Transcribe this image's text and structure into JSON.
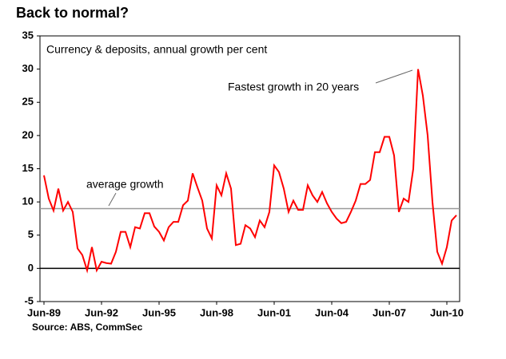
{
  "chart_data": {
    "type": "line",
    "title": "Back to normal?",
    "subtitle": "Currency & deposits, annual growth per cent",
    "source": "Source: ABS, CommSec",
    "categories": [
      "Jun-89",
      null,
      null,
      null,
      null,
      null,
      null,
      null,
      null,
      null,
      null,
      null,
      "Jun-92",
      null,
      null,
      null,
      null,
      null,
      null,
      null,
      null,
      null,
      null,
      null,
      "Jun-95",
      null,
      null,
      null,
      null,
      null,
      null,
      null,
      null,
      null,
      null,
      null,
      "Jun-98",
      null,
      null,
      null,
      null,
      null,
      null,
      null,
      null,
      null,
      null,
      null,
      "Jun-01",
      null,
      null,
      null,
      null,
      null,
      null,
      null,
      null,
      null,
      null,
      null,
      "Jun-04",
      null,
      null,
      null,
      null,
      null,
      null,
      null,
      null,
      null,
      null,
      null,
      "Jun-07",
      null,
      null,
      null,
      null,
      null,
      null,
      null,
      null,
      null,
      null,
      null,
      "Jun-10",
      null,
      null
    ],
    "series": [
      {
        "name": "Currency & deposits growth",
        "color": "#ff0000",
        "values": [
          14,
          10.5,
          8.7,
          12,
          8.7,
          10,
          8.5,
          3,
          2,
          -0.3,
          3.2,
          -0.3,
          1,
          0.8,
          0.7,
          2.5,
          5.5,
          5.5,
          3.2,
          6.2,
          6,
          8.3,
          8.3,
          6.3,
          5.5,
          4.2,
          6.2,
          7,
          7,
          9.5,
          10.2,
          14.3,
          12.2,
          10.2,
          6,
          4.5,
          12.5,
          11,
          14.3,
          12,
          3.5,
          3.7,
          6.5,
          6,
          4.7,
          7.2,
          6.2,
          8.5,
          15.5,
          14.5,
          12,
          8.5,
          10.2,
          8.8,
          8.8,
          12.5,
          11,
          10,
          11.5,
          9.8,
          8.5,
          7.5,
          6.8,
          7,
          8.5,
          10.2,
          12.7,
          12.7,
          13.3,
          17.5,
          17.5,
          19.8,
          19.8,
          17,
          8.5,
          10.5,
          10,
          15,
          30,
          26,
          20,
          10,
          2.5,
          0.7,
          3.2,
          7.2,
          8
        ]
      }
    ],
    "reference_line": {
      "value": 9,
      "label": "average growth",
      "color": "#999999"
    },
    "annotation": "Fastest growth in 20 years",
    "ylim": [
      -5,
      35
    ],
    "yticks": [
      -5,
      0,
      5,
      10,
      15,
      20,
      25,
      30,
      35
    ],
    "grid": false
  }
}
